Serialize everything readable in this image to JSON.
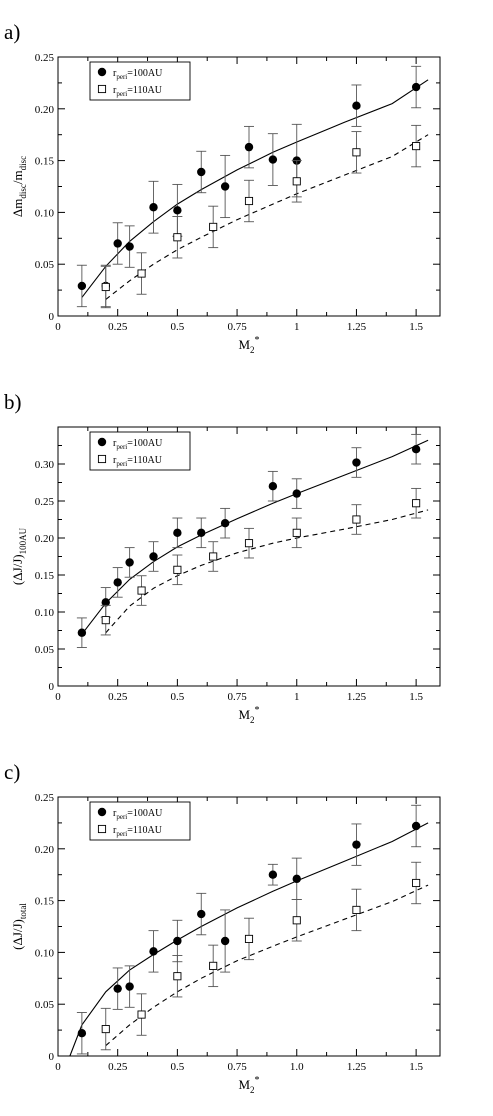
{
  "chart_data": [
    {
      "type": "scatter",
      "panel_label": "a)",
      "ylabel": "Δm",
      "ylabel_sub": "disc",
      "ylabel_mid": "/m",
      "ylabel_sub2": "disc",
      "xlabel": "M",
      "xlabel_sub": "2",
      "xlabel_sup": "*",
      "xlim": [
        0,
        1.6
      ],
      "ylim": [
        0,
        0.25
      ],
      "xticks": [
        "0",
        "0.25",
        "0.5",
        "0.75",
        "1",
        "1.25",
        "1.5"
      ],
      "yticks": [
        "0",
        "0.05",
        "0.10",
        "0.15",
        "0.20",
        "0.25"
      ],
      "legend": [
        {
          "prefix": "r",
          "sub": "peri",
          "suffix": "=100AU",
          "marker": "filled-circle"
        },
        {
          "prefix": "r",
          "sub": "peri",
          "suffix": "=110AU",
          "marker": "open-square"
        }
      ],
      "series": [
        {
          "marker": "filled-circle",
          "line": "solid",
          "x": [
            0.1,
            0.2,
            0.25,
            0.3,
            0.4,
            0.5,
            0.6,
            0.7,
            0.8,
            0.9,
            1.0,
            1.25,
            1.5
          ],
          "y": [
            0.029,
            0.029,
            0.07,
            0.067,
            0.105,
            0.102,
            0.139,
            0.125,
            0.163,
            0.151,
            0.15,
            0.203,
            0.221
          ],
          "err": [
            0.02,
            0.02,
            0.02,
            0.02,
            0.025,
            0.025,
            0.02,
            0.03,
            0.02,
            0.025,
            0.035,
            0.02,
            0.02
          ],
          "fit_x": [
            0.1,
            0.2,
            0.3,
            0.4,
            0.5,
            0.6,
            0.75,
            0.9,
            1.0,
            1.2,
            1.4,
            1.55
          ],
          "fit_y": [
            0.018,
            0.048,
            0.072,
            0.091,
            0.108,
            0.122,
            0.141,
            0.158,
            0.168,
            0.187,
            0.205,
            0.228
          ]
        },
        {
          "marker": "open-square",
          "line": "dashed",
          "x": [
            0.2,
            0.35,
            0.5,
            0.65,
            0.8,
            1.0,
            1.25,
            1.5
          ],
          "y": [
            0.028,
            0.041,
            0.076,
            0.086,
            0.111,
            0.13,
            0.158,
            0.164
          ],
          "err": [
            0.02,
            0.02,
            0.02,
            0.02,
            0.02,
            0.02,
            0.02,
            0.02
          ],
          "fit_x": [
            0.2,
            0.3,
            0.4,
            0.5,
            0.6,
            0.75,
            0.9,
            1.0,
            1.2,
            1.4,
            1.55
          ],
          "fit_y": [
            0.016,
            0.034,
            0.05,
            0.064,
            0.076,
            0.093,
            0.108,
            0.118,
            0.136,
            0.154,
            0.175
          ]
        }
      ]
    },
    {
      "type": "scatter",
      "panel_label": "b)",
      "ylabel": "(ΔJ/J)",
      "ylabel_sub": "100AU",
      "xlabel": "M",
      "xlabel_sub": "2",
      "xlabel_sup": "*",
      "xlim": [
        0,
        1.6
      ],
      "ylim": [
        0,
        0.35
      ],
      "xticks": [
        "0",
        "0.25",
        "0.5",
        "0.75",
        "1",
        "1.25",
        "1.5"
      ],
      "yticks": [
        "0",
        "0.05",
        "0.10",
        "0.15",
        "0.20",
        "0.25",
        "0.30"
      ],
      "legend": [
        {
          "prefix": "r",
          "sub": "peri",
          "suffix": "=100AU",
          "marker": "filled-circle"
        },
        {
          "prefix": "r",
          "sub": "peri",
          "suffix": "=110AU",
          "marker": "open-square"
        }
      ],
      "series": [
        {
          "marker": "filled-circle",
          "line": "solid",
          "x": [
            0.1,
            0.2,
            0.25,
            0.3,
            0.4,
            0.5,
            0.6,
            0.7,
            0.9,
            1.0,
            1.25,
            1.5
          ],
          "y": [
            0.072,
            0.113,
            0.14,
            0.167,
            0.175,
            0.207,
            0.207,
            0.22,
            0.27,
            0.26,
            0.302,
            0.32
          ],
          "err": [
            0.02,
            0.02,
            0.02,
            0.02,
            0.02,
            0.02,
            0.02,
            0.02,
            0.02,
            0.02,
            0.02,
            0.02
          ],
          "fit_x": [
            0.1,
            0.2,
            0.3,
            0.4,
            0.5,
            0.6,
            0.75,
            0.9,
            1.0,
            1.2,
            1.4,
            1.55
          ],
          "fit_y": [
            0.07,
            0.112,
            0.144,
            0.168,
            0.188,
            0.204,
            0.226,
            0.247,
            0.26,
            0.285,
            0.31,
            0.332
          ]
        },
        {
          "marker": "open-square",
          "line": "dashed",
          "x": [
            0.2,
            0.35,
            0.5,
            0.65,
            0.8,
            1.0,
            1.25,
            1.5
          ],
          "y": [
            0.089,
            0.129,
            0.157,
            0.175,
            0.193,
            0.207,
            0.225,
            0.247
          ],
          "err": [
            0.02,
            0.02,
            0.02,
            0.02,
            0.02,
            0.02,
            0.02,
            0.02
          ],
          "fit_x": [
            0.2,
            0.3,
            0.4,
            0.5,
            0.6,
            0.75,
            0.9,
            1.0,
            1.2,
            1.4,
            1.55
          ],
          "fit_y": [
            0.072,
            0.108,
            0.132,
            0.149,
            0.163,
            0.18,
            0.193,
            0.2,
            0.212,
            0.225,
            0.238
          ]
        }
      ]
    },
    {
      "type": "scatter",
      "panel_label": "c)",
      "ylabel": "(ΔJ/J)",
      "ylabel_sub": "total",
      "xlabel": "M",
      "xlabel_sub": "2",
      "xlabel_sup": "*",
      "xlim": [
        0,
        1.6
      ],
      "ylim": [
        0,
        0.25
      ],
      "xticks": [
        "0",
        "0.25",
        "0.5",
        "0.75",
        "1.0",
        "1.25",
        "1.5"
      ],
      "yticks": [
        "0",
        "0.05",
        "0.10",
        "0.15",
        "0.20",
        "0.25"
      ],
      "legend": [
        {
          "prefix": "r",
          "sub": "peri",
          "suffix": "=100AU",
          "marker": "filled-circle"
        },
        {
          "prefix": "r",
          "sub": "peri",
          "suffix": "=110AU",
          "marker": "open-square"
        }
      ],
      "series": [
        {
          "marker": "filled-circle",
          "line": "solid",
          "x": [
            0.1,
            0.25,
            0.3,
            0.4,
            0.5,
            0.6,
            0.7,
            0.9,
            1.0,
            1.25,
            1.5
          ],
          "y": [
            0.022,
            0.065,
            0.067,
            0.101,
            0.111,
            0.137,
            0.111,
            0.175,
            0.171,
            0.204,
            0.222
          ],
          "err": [
            0.02,
            0.02,
            0.02,
            0.02,
            0.02,
            0.02,
            0.03,
            0.01,
            0.02,
            0.02,
            0.02
          ],
          "fit_x": [
            0.05,
            0.1,
            0.2,
            0.3,
            0.4,
            0.5,
            0.6,
            0.75,
            0.9,
            1.0,
            1.2,
            1.4,
            1.55
          ],
          "fit_y": [
            0.0,
            0.03,
            0.062,
            0.083,
            0.098,
            0.112,
            0.125,
            0.143,
            0.159,
            0.169,
            0.188,
            0.207,
            0.225
          ]
        },
        {
          "marker": "open-square",
          "line": "dashed",
          "x": [
            0.2,
            0.35,
            0.5,
            0.65,
            0.8,
            1.0,
            1.25,
            1.5
          ],
          "y": [
            0.026,
            0.04,
            0.077,
            0.087,
            0.113,
            0.131,
            0.141,
            0.167
          ],
          "err": [
            0.02,
            0.02,
            0.02,
            0.02,
            0.02,
            0.02,
            0.02,
            0.02
          ],
          "fit_x": [
            0.2,
            0.3,
            0.4,
            0.5,
            0.6,
            0.75,
            0.9,
            1.0,
            1.2,
            1.4,
            1.55
          ],
          "fit_y": [
            0.01,
            0.03,
            0.047,
            0.062,
            0.075,
            0.092,
            0.106,
            0.115,
            0.132,
            0.149,
            0.165
          ]
        }
      ]
    }
  ]
}
